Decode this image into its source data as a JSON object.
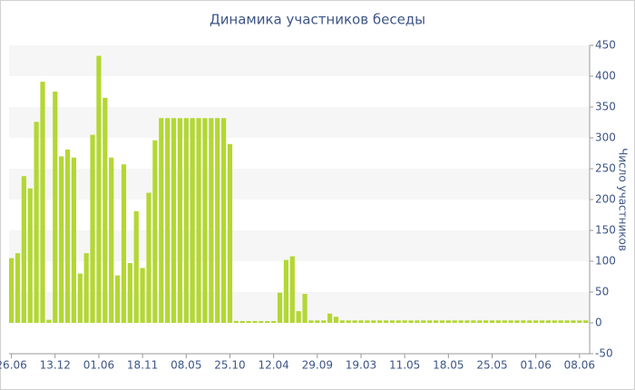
{
  "chart_data": {
    "type": "bar",
    "title": "Динамика участников беседы",
    "y_label": "Число участников",
    "categories": [
      "26.06",
      null,
      null,
      null,
      null,
      null,
      null,
      "13.12",
      null,
      null,
      null,
      null,
      null,
      null,
      "01.06",
      null,
      null,
      null,
      null,
      null,
      null,
      "18.11",
      null,
      null,
      null,
      null,
      null,
      null,
      "08.05",
      null,
      null,
      null,
      null,
      null,
      null,
      "25.10",
      null,
      null,
      null,
      null,
      null,
      null,
      "12.04",
      null,
      null,
      null,
      null,
      null,
      null,
      "29.09",
      null,
      null,
      null,
      null,
      null,
      null,
      "19.03",
      null,
      null,
      null,
      null,
      null,
      null,
      "11.05",
      null,
      null,
      null,
      null,
      null,
      null,
      "18.05",
      null,
      null,
      null,
      null,
      null,
      null,
      "25.05",
      null,
      null,
      null,
      null,
      null,
      null,
      "01.06",
      null,
      null,
      null,
      null,
      null,
      null,
      "08.06",
      null
    ],
    "values": [
      105,
      113,
      238,
      218,
      326,
      391,
      5,
      375,
      270,
      281,
      268,
      80,
      113,
      305,
      433,
      365,
      268,
      77,
      257,
      97,
      181,
      89,
      211,
      296,
      332,
      332,
      332,
      332,
      332,
      332,
      332,
      332,
      332,
      332,
      332,
      290,
      3,
      3,
      3,
      3,
      3,
      3,
      3,
      49,
      102,
      108,
      19,
      47,
      4,
      4,
      4,
      15,
      10,
      4,
      4,
      4,
      4,
      4,
      4,
      4,
      4,
      4,
      4,
      4,
      4,
      4,
      4,
      4,
      4,
      4,
      4,
      4,
      4,
      4,
      4,
      4,
      4,
      4,
      4,
      4,
      4,
      4,
      4,
      4,
      4,
      4,
      4,
      4,
      4,
      4,
      4,
      4,
      4
    ],
    "color": "#b3d733",
    "ylim": [
      -50,
      450
    ],
    "yticks": [
      -50,
      0,
      50,
      100,
      150,
      200,
      250,
      300,
      350,
      400,
      450
    ],
    "grid": true,
    "y_axis_side": "right"
  }
}
